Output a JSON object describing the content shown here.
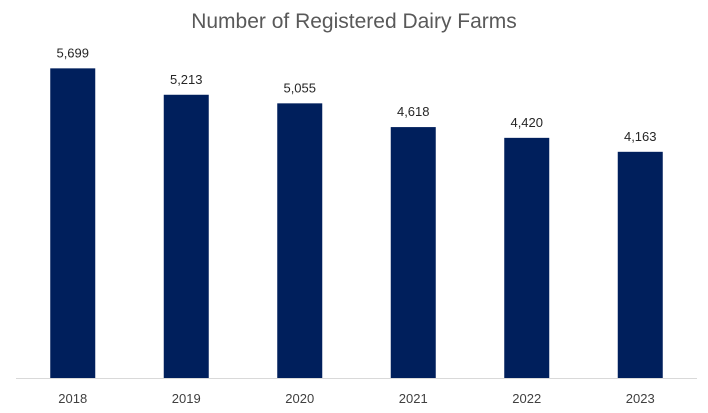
{
  "chart_data": {
    "type": "bar",
    "title": "Number of Registered Dairy Farms",
    "xlabel": "",
    "ylabel": "",
    "categories": [
      "2018",
      "2019",
      "2020",
      "2021",
      "2022",
      "2023"
    ],
    "values": [
      5699,
      5213,
      5055,
      4618,
      4420,
      4163
    ],
    "value_labels": [
      "5,699",
      "5,213",
      "5,055",
      "4,618",
      "4,420",
      "4,163"
    ],
    "ylim": [
      0,
      6000
    ],
    "grid": false,
    "bar_color": "#001f5c",
    "axis_color": "#d9d9d9"
  }
}
